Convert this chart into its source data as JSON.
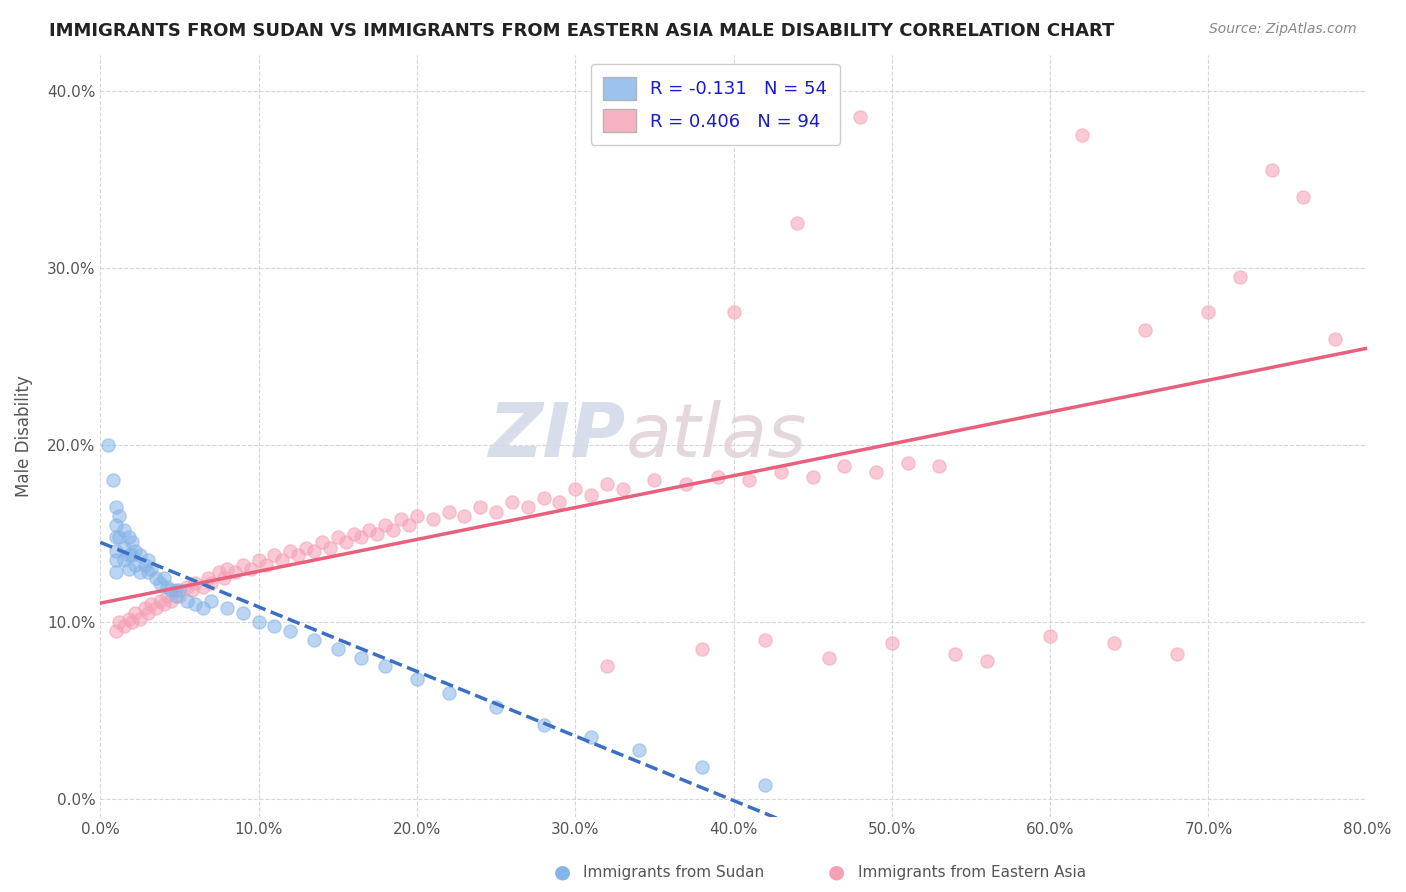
{
  "title": "IMMIGRANTS FROM SUDAN VS IMMIGRANTS FROM EASTERN ASIA MALE DISABILITY CORRELATION CHART",
  "source": "Source: ZipAtlas.com",
  "xlabel_sudan": "Immigrants from Sudan",
  "xlabel_eastern_asia": "Immigrants from Eastern Asia",
  "ylabel": "Male Disability",
  "xlim": [
    0.0,
    0.8
  ],
  "ylim": [
    -0.01,
    0.42
  ],
  "xticks": [
    0.0,
    0.1,
    0.2,
    0.3,
    0.4,
    0.5,
    0.6,
    0.7,
    0.8
  ],
  "yticks": [
    0.0,
    0.1,
    0.2,
    0.3,
    0.4
  ],
  "sudan_R": -0.131,
  "sudan_N": 54,
  "eastern_R": 0.406,
  "eastern_N": 94,
  "sudan_color": "#85b4e8",
  "eastern_color": "#f5a0b5",
  "sudan_line_color": "#3a6fc4",
  "eastern_line_color": "#e8607a",
  "watermark_zip": "ZIP",
  "watermark_atlas": "atlas",
  "background_color": "#ffffff",
  "grid_color": "#cccccc",
  "sudan_x": [
    0.005,
    0.008,
    0.01,
    0.01,
    0.01,
    0.01,
    0.01,
    0.01,
    0.012,
    0.012,
    0.015,
    0.015,
    0.015,
    0.018,
    0.018,
    0.018,
    0.02,
    0.02,
    0.022,
    0.022,
    0.025,
    0.025,
    0.028,
    0.03,
    0.03,
    0.032,
    0.035,
    0.038,
    0.04,
    0.042,
    0.045,
    0.048,
    0.05,
    0.055,
    0.06,
    0.065,
    0.07,
    0.08,
    0.09,
    0.1,
    0.11,
    0.12,
    0.135,
    0.15,
    0.165,
    0.18,
    0.2,
    0.22,
    0.25,
    0.28,
    0.31,
    0.34,
    0.38,
    0.42
  ],
  "sudan_y": [
    0.2,
    0.18,
    0.165,
    0.155,
    0.148,
    0.14,
    0.135,
    0.128,
    0.16,
    0.148,
    0.152,
    0.142,
    0.135,
    0.148,
    0.138,
    0.13,
    0.145,
    0.138,
    0.14,
    0.132,
    0.138,
    0.128,
    0.132,
    0.135,
    0.128,
    0.13,
    0.125,
    0.122,
    0.125,
    0.12,
    0.118,
    0.115,
    0.118,
    0.112,
    0.11,
    0.108,
    0.112,
    0.108,
    0.105,
    0.1,
    0.098,
    0.095,
    0.09,
    0.085,
    0.08,
    0.075,
    0.068,
    0.06,
    0.052,
    0.042,
    0.035,
    0.028,
    0.018,
    0.008
  ],
  "eastern_x": [
    0.01,
    0.012,
    0.015,
    0.018,
    0.02,
    0.022,
    0.025,
    0.028,
    0.03,
    0.032,
    0.035,
    0.038,
    0.04,
    0.042,
    0.045,
    0.048,
    0.05,
    0.055,
    0.058,
    0.06,
    0.065,
    0.068,
    0.07,
    0.075,
    0.078,
    0.08,
    0.085,
    0.09,
    0.095,
    0.1,
    0.105,
    0.11,
    0.115,
    0.12,
    0.125,
    0.13,
    0.135,
    0.14,
    0.145,
    0.15,
    0.155,
    0.16,
    0.165,
    0.17,
    0.175,
    0.18,
    0.185,
    0.19,
    0.195,
    0.2,
    0.21,
    0.22,
    0.23,
    0.24,
    0.25,
    0.26,
    0.27,
    0.28,
    0.29,
    0.3,
    0.31,
    0.32,
    0.33,
    0.35,
    0.37,
    0.39,
    0.41,
    0.43,
    0.45,
    0.47,
    0.49,
    0.51,
    0.53,
    0.32,
    0.38,
    0.42,
    0.46,
    0.5,
    0.54,
    0.56,
    0.6,
    0.64,
    0.68,
    0.7,
    0.72,
    0.74,
    0.76,
    0.78,
    0.35,
    0.4,
    0.44,
    0.48,
    0.62,
    0.66
  ],
  "eastern_y": [
    0.095,
    0.1,
    0.098,
    0.102,
    0.1,
    0.105,
    0.102,
    0.108,
    0.105,
    0.11,
    0.108,
    0.112,
    0.11,
    0.115,
    0.112,
    0.118,
    0.115,
    0.12,
    0.118,
    0.122,
    0.12,
    0.125,
    0.122,
    0.128,
    0.125,
    0.13,
    0.128,
    0.132,
    0.13,
    0.135,
    0.132,
    0.138,
    0.135,
    0.14,
    0.138,
    0.142,
    0.14,
    0.145,
    0.142,
    0.148,
    0.145,
    0.15,
    0.148,
    0.152,
    0.15,
    0.155,
    0.152,
    0.158,
    0.155,
    0.16,
    0.158,
    0.162,
    0.16,
    0.165,
    0.162,
    0.168,
    0.165,
    0.17,
    0.168,
    0.175,
    0.172,
    0.178,
    0.175,
    0.18,
    0.178,
    0.182,
    0.18,
    0.185,
    0.182,
    0.188,
    0.185,
    0.19,
    0.188,
    0.075,
    0.085,
    0.09,
    0.08,
    0.088,
    0.082,
    0.078,
    0.092,
    0.088,
    0.082,
    0.275,
    0.295,
    0.355,
    0.34,
    0.26,
    0.375,
    0.275,
    0.325,
    0.385,
    0.375,
    0.265
  ]
}
